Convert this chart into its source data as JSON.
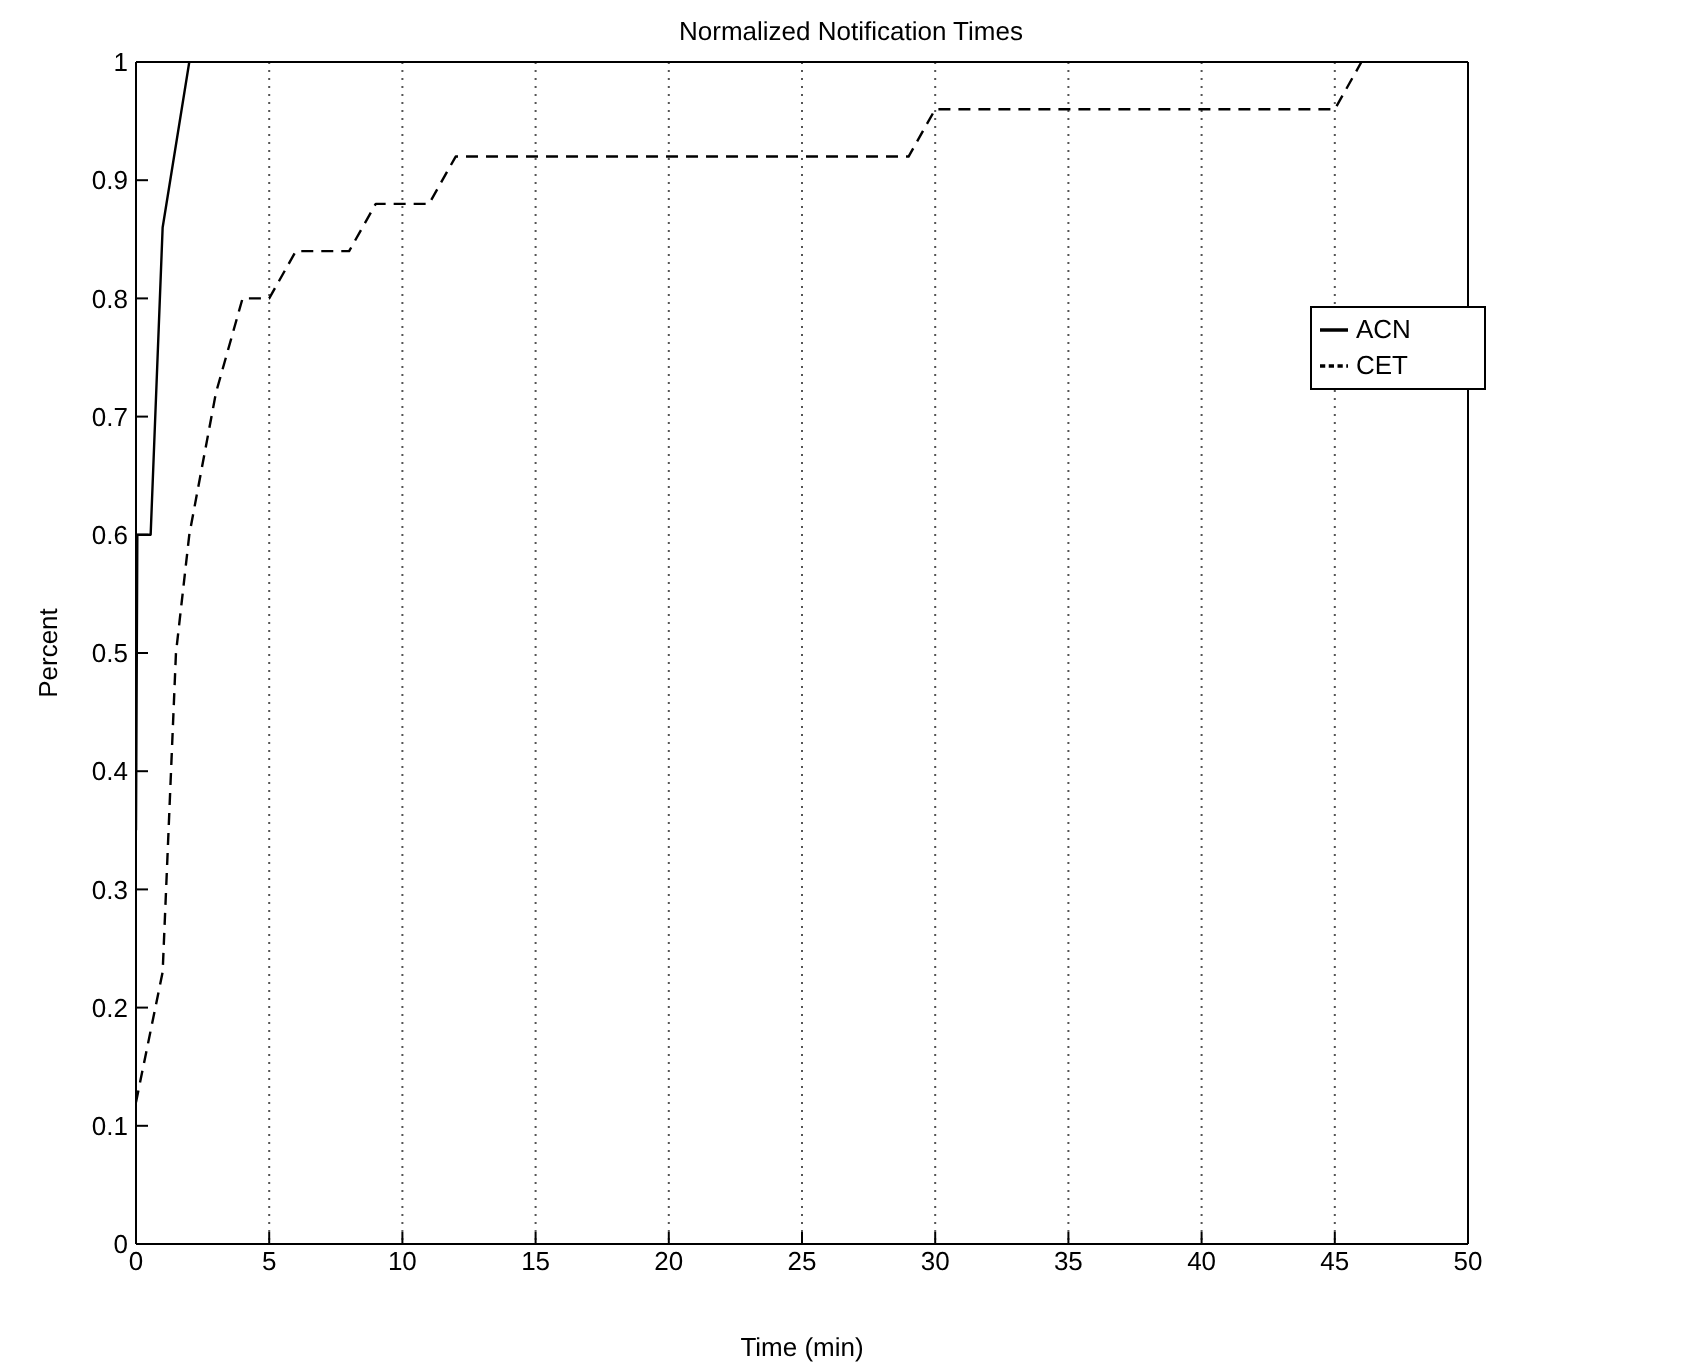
{
  "chart_data": {
    "type": "line",
    "title": "Normalized Notification Times",
    "xlabel": "Time (min)",
    "ylabel": "Percent",
    "series": [
      {
        "name": "ACN",
        "color": "#000000",
        "line_style": "solid",
        "x": [
          0,
          0.05,
          0.55,
          1,
          2
        ],
        "values": [
          0.35,
          0.6,
          0.6,
          0.86,
          1
        ]
      },
      {
        "name": "CET",
        "color": "#000000",
        "line_style": "dashed",
        "x": [
          0,
          1,
          1.5,
          2,
          3,
          4,
          5,
          6,
          8,
          9,
          11,
          12,
          29,
          30,
          45,
          46
        ],
        "values": [
          0.12,
          0.23,
          0.5,
          0.6,
          0.72,
          0.8,
          0.8,
          0.84,
          0.84,
          0.88,
          0.88,
          0.92,
          0.92,
          0.96,
          0.96,
          1
        ]
      }
    ],
    "xlim": [
      0,
      50
    ],
    "xticks": [
      0,
      5,
      10,
      15,
      20,
      25,
      30,
      35,
      40,
      45,
      50
    ],
    "ylim": [
      0,
      1
    ],
    "yticks": [
      0,
      0.1,
      0.2,
      0.3,
      0.4,
      0.5,
      0.6,
      0.7,
      0.8,
      0.9,
      1
    ],
    "grid": "x",
    "legend": "right",
    "marker": "none"
  }
}
